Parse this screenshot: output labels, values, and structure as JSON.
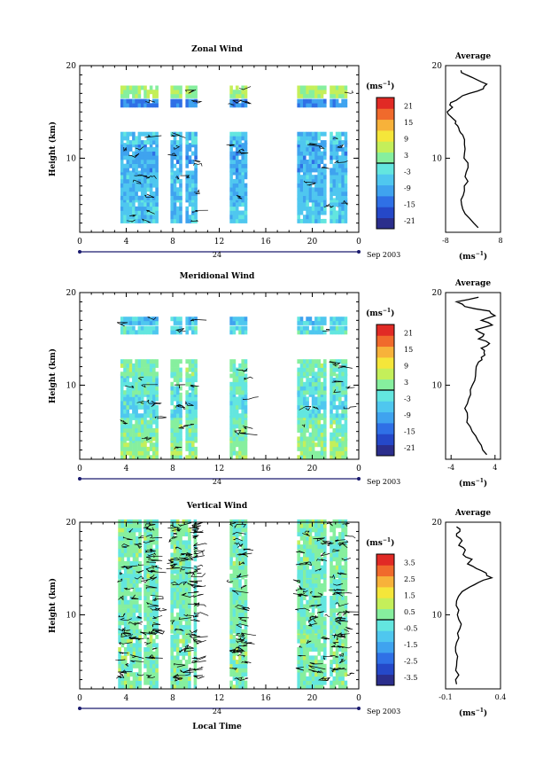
{
  "figure": {
    "xlabel": "Local Time",
    "colors": {
      "colormap": [
        "#2b2e8c",
        "#2548c8",
        "#2f70e6",
        "#3fa3ef",
        "#4fc7ef",
        "#63e6df",
        "#86ef9e",
        "#c4ef5a",
        "#f5e63a",
        "#f7b23a",
        "#f06a2c",
        "#e12a25"
      ],
      "line": "#000000",
      "axis_date": "#1a1a6e"
    }
  },
  "chart_data": [
    {
      "type": "heatmap",
      "title": "Zonal Wind",
      "ylabel": "Height (km)",
      "xlabel": "Local Time",
      "xticks": [
        "0",
        "4",
        "8",
        "12",
        "16",
        "20",
        "0"
      ],
      "xlim": [
        0,
        24
      ],
      "yticks": [
        "10",
        "20"
      ],
      "ylim": [
        2,
        20
      ],
      "date_day": "24",
      "date_label": "Sep 2003",
      "colorbar": {
        "unit_label": "(ms",
        "unit_exp": "−1",
        "unit_close": ")",
        "ticks": [
          "21",
          "15",
          "9",
          "3",
          "-3",
          "-9",
          "-15",
          "-21"
        ],
        "zero_level": 0
      },
      "data_periods_lt": [
        [
          3.5,
          5.3
        ],
        [
          5.5,
          6.6
        ],
        [
          7.8,
          8.8
        ],
        [
          9.1,
          9.9
        ],
        [
          12.9,
          14.2
        ],
        [
          18.7,
          21.2
        ],
        [
          21.5,
          23.0
        ]
      ],
      "layers": [
        {
          "y": [
            3,
            5.5
          ],
          "value": -6
        },
        {
          "y": [
            5.5,
            8.5
          ],
          "value": -7
        },
        {
          "y": [
            8.5,
            11.5
          ],
          "value": -9
        },
        {
          "y": [
            11.5,
            12.8
          ],
          "value": -6
        },
        {
          "y": [
            15.5,
            16.2
          ],
          "value": -12
        },
        {
          "y": [
            16.5,
            17.6
          ],
          "value": 4
        }
      ],
      "average": {
        "title": "Average",
        "xticks": [
          "-8",
          "8"
        ],
        "xlim": [
          -8,
          8
        ],
        "yticks": [
          "10",
          "20"
        ],
        "unit_label": "(ms",
        "unit_exp": "−1",
        "unit_close": ")",
        "height_km": [
          2.5,
          3.5,
          4.5,
          5.5,
          6.5,
          7.5,
          8.5,
          9.5,
          10.5,
          11.5,
          12.5,
          13.0,
          13.5,
          14.0,
          14.5,
          15.0,
          15.5,
          16.0,
          16.5,
          17.0,
          17.5,
          18.0,
          18.5,
          19.0,
          19.5
        ],
        "value_ms": [
          1.5,
          -1.0,
          -3.0,
          -3.5,
          -2.5,
          -1.5,
          -2.0,
          -1.5,
          -2.5,
          -2.5,
          -3.0,
          -4.0,
          -4.5,
          -5.0,
          -6.5,
          -7.5,
          -6.0,
          -6.5,
          -4.0,
          -1.0,
          3.0,
          4.0,
          1.0,
          -2.0,
          -3.5
        ]
      }
    },
    {
      "type": "heatmap",
      "title": "Meridional Wind",
      "ylabel": "Height (km)",
      "xlabel": "Local Time",
      "xticks": [
        "0",
        "4",
        "8",
        "12",
        "16",
        "20",
        "0"
      ],
      "xlim": [
        0,
        24
      ],
      "yticks": [
        "10",
        "20"
      ],
      "ylim": [
        2,
        20
      ],
      "date_day": "24",
      "date_label": "Sep 2003",
      "colorbar": {
        "unit_label": "(ms",
        "unit_exp": "−1",
        "unit_close": ")",
        "ticks": [
          "21",
          "15",
          "9",
          "3",
          "-3",
          "-9",
          "-15",
          "-21"
        ],
        "zero_level": 0
      },
      "data_periods_lt": [
        [
          3.5,
          5.3
        ],
        [
          5.5,
          6.6
        ],
        [
          7.8,
          8.8
        ],
        [
          9.1,
          9.9
        ],
        [
          12.9,
          14.2
        ],
        [
          18.7,
          21.2
        ],
        [
          21.5,
          23.0
        ]
      ],
      "layers": [
        {
          "y": [
            2.0,
            4.0
          ],
          "value": 3
        },
        {
          "y": [
            4.0,
            6.5
          ],
          "value": 1
        },
        {
          "y": [
            6.5,
            9.0
          ],
          "value": -3
        },
        {
          "y": [
            9.0,
            11.0
          ],
          "value": -1
        },
        {
          "y": [
            11.0,
            12.5
          ],
          "value": 1
        },
        {
          "y": [
            15.5,
            16.3
          ],
          "value": -3
        },
        {
          "y": [
            16.5,
            17.3
          ],
          "value": -6
        }
      ],
      "average": {
        "title": "Average",
        "xticks": [
          "-4",
          "4"
        ],
        "xlim": [
          -5,
          5
        ],
        "yticks": [
          "10",
          "20"
        ],
        "unit_label": "(ms",
        "unit_exp": "−1",
        "unit_close": ")",
        "height_km": [
          2.5,
          3.5,
          4.5,
          5.5,
          6.5,
          7.5,
          8.5,
          9.5,
          10.5,
          11.5,
          12.5,
          13.0,
          13.5,
          14.0,
          14.5,
          15.0,
          15.5,
          16.0,
          16.5,
          17.0,
          17.5,
          18.0,
          18.5,
          19.0,
          19.5
        ],
        "value_ms": [
          2.5,
          1.5,
          0.5,
          -0.5,
          -1.0,
          -1.5,
          -0.8,
          -0.5,
          0.3,
          0.5,
          1.0,
          1.5,
          2.0,
          1.5,
          3.0,
          1.0,
          2.0,
          0.5,
          3.5,
          1.5,
          4.0,
          3.0,
          -1.5,
          -3.0,
          1.0
        ]
      }
    },
    {
      "type": "heatmap",
      "title": "Vertical Wind",
      "ylabel": "Height (km)",
      "xlabel": "Local Time",
      "xticks": [
        "0",
        "4",
        "8",
        "12",
        "16",
        "20",
        "0"
      ],
      "xlim": [
        0,
        24
      ],
      "yticks": [
        "10",
        "20"
      ],
      "ylim": [
        2,
        20
      ],
      "date_day": "24",
      "date_label": "Sep 2003",
      "colorbar": {
        "unit_label": "(ms",
        "unit_exp": "−1",
        "unit_close": ")",
        "ticks": [
          "3.5",
          "2.5",
          "1.5",
          "0.5",
          "-0.5",
          "-1.5",
          "-2.5",
          "-3.5"
        ],
        "zero_level": 0
      },
      "data_periods_lt": [
        [
          3.3,
          5.3
        ],
        [
          5.5,
          6.6
        ],
        [
          7.8,
          9.5
        ],
        [
          9.8,
          9.9
        ],
        [
          12.9,
          14.2
        ],
        [
          18.7,
          21.2
        ],
        [
          21.5,
          23.0
        ]
      ],
      "layers": [
        {
          "y": [
            2.0,
            8.0
          ],
          "value": 0.2
        },
        {
          "y": [
            8.0,
            14.0
          ],
          "value": 0.1
        },
        {
          "y": [
            14.0,
            20.0
          ],
          "value": 0.15
        }
      ],
      "average": {
        "title": "Average",
        "xticks": [
          "-0.1",
          "0.4"
        ],
        "xlim": [
          -0.1,
          0.4
        ],
        "yticks": [
          "10",
          "20"
        ],
        "unit_label": "(ms",
        "unit_exp": "−1",
        "unit_close": ")",
        "height_km": [
          2.5,
          3.5,
          4.5,
          5.5,
          6.5,
          7.5,
          8.5,
          9.5,
          10.5,
          11.5,
          12.5,
          13.0,
          13.5,
          14.0,
          14.5,
          15.0,
          15.5,
          16.0,
          16.5,
          17.0,
          17.5,
          18.0,
          18.5,
          19.0,
          19.5
        ],
        "value_ms": [
          0.0,
          0.02,
          0.0,
          0.01,
          -0.01,
          0.02,
          0.03,
          0.02,
          0.02,
          0.0,
          0.05,
          0.12,
          0.2,
          0.32,
          0.27,
          0.18,
          0.1,
          0.14,
          0.06,
          0.08,
          0.02,
          0.05,
          0.0,
          0.03,
          0.0
        ]
      }
    }
  ]
}
